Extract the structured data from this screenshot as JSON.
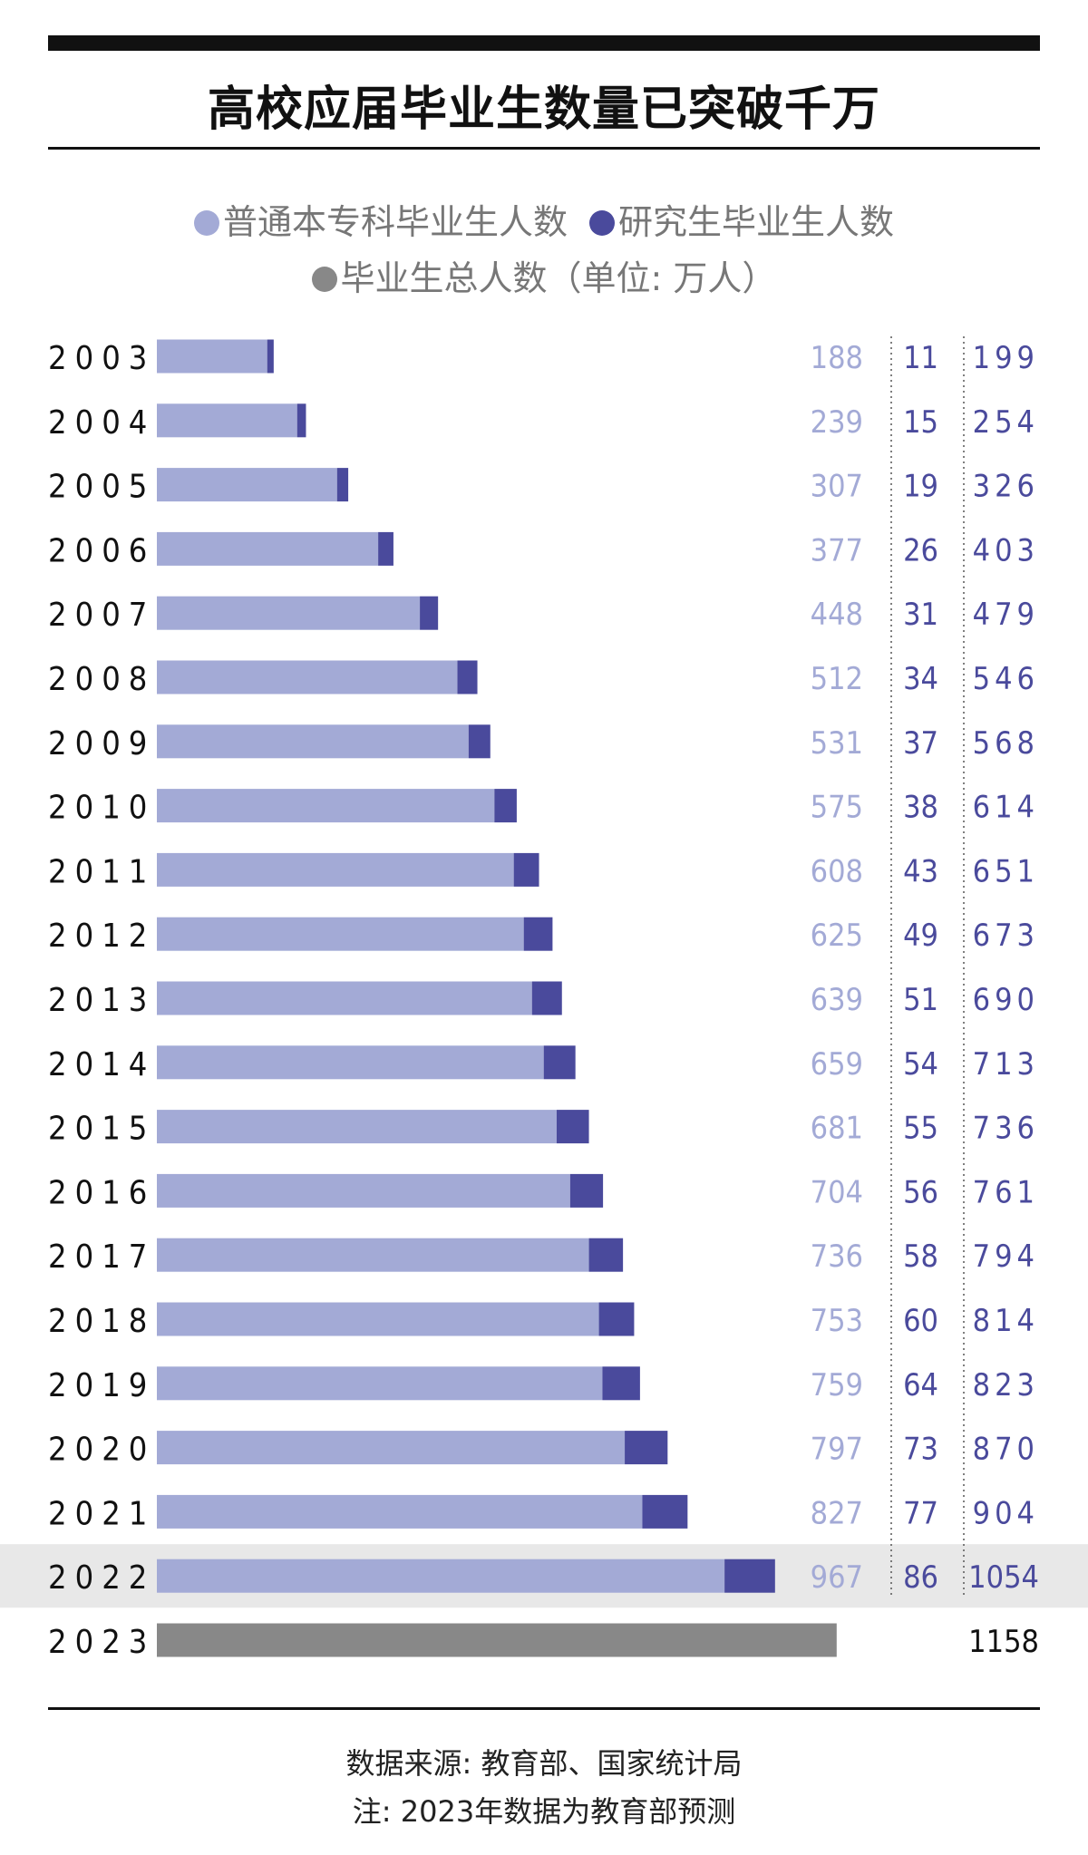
{
  "colors": {
    "undergrad": "#a3aad6",
    "graduate": "#4a4a9c",
    "total_bar": "#888888",
    "highlight_band": "#e8e8e8",
    "undergrad_text": "#a3aad6",
    "graduate_text": "#4a4a9c",
    "total_text": "#4a4a9c"
  },
  "legend": {
    "undergrad_label": "普通本专科毕业生人数",
    "graduate_label": "研究生毕业生人数",
    "total_label": "毕业生总人数（单位: 万人）"
  },
  "footer": {
    "source": "数据来源: 教育部、国家统计局",
    "note": "注: 2023年数据为教育部预测"
  },
  "chart_data": {
    "type": "bar",
    "orientation": "horizontal",
    "stacked": true,
    "title": "高校应届毕业生数量已突破千万",
    "unit": "万人",
    "categories": [
      "2003",
      "2004",
      "2005",
      "2006",
      "2007",
      "2008",
      "2009",
      "2010",
      "2011",
      "2012",
      "2013",
      "2014",
      "2015",
      "2016",
      "2017",
      "2018",
      "2019",
      "2020",
      "2021",
      "2022",
      "2023"
    ],
    "series": [
      {
        "name": "普通本专科毕业生人数",
        "values": [
          188,
          239,
          307,
          377,
          448,
          512,
          531,
          575,
          608,
          625,
          639,
          659,
          681,
          704,
          736,
          753,
          759,
          797,
          827,
          967,
          null
        ]
      },
      {
        "name": "研究生毕业生人数",
        "values": [
          11,
          15,
          19,
          26,
          31,
          34,
          37,
          38,
          43,
          49,
          51,
          54,
          55,
          56,
          58,
          60,
          64,
          73,
          77,
          86,
          null
        ]
      },
      {
        "name": "毕业生总人数",
        "values": [
          199,
          254,
          326,
          403,
          479,
          546,
          568,
          614,
          651,
          673,
          690,
          713,
          736,
          761,
          794,
          814,
          823,
          870,
          904,
          1054,
          1158
        ]
      }
    ],
    "highlight_category": "2022",
    "grid": false,
    "legend_position": "top"
  }
}
